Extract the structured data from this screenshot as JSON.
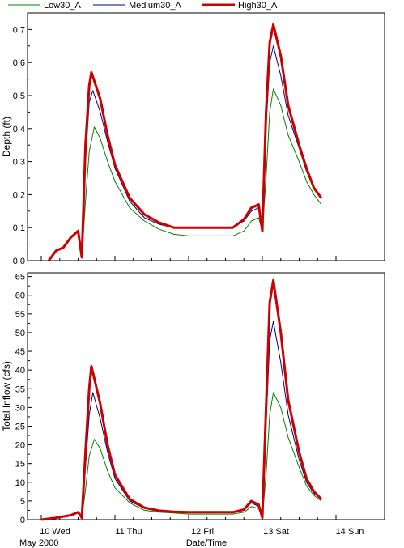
{
  "legend": [
    {
      "name": "Low30_A",
      "color": "#008000",
      "width": 1
    },
    {
      "name": "Medium30_A",
      "color": "#000080",
      "width": 1
    },
    {
      "name": "High30_A",
      "color": "#cc0000",
      "width": 3
    }
  ],
  "chart_data": [
    {
      "type": "line",
      "title": "",
      "ylabel": "Depth (ft)",
      "xlabel": "",
      "ylim": [
        0,
        0.75
      ],
      "yticks": [
        0.0,
        0.1,
        0.2,
        0.3,
        0.4,
        0.5,
        0.6,
        0.7
      ],
      "ytick_labels": [
        "0.0",
        "0.1",
        "0.2",
        "0.3",
        "0.4",
        "0.5",
        "0.6",
        "0.7"
      ],
      "grid": false,
      "series": [
        {
          "name": "Low30_A",
          "x": [
            0.1,
            0.2,
            0.3,
            0.4,
            0.5,
            0.55,
            0.6,
            0.65,
            0.72,
            0.8,
            0.9,
            1.0,
            1.2,
            1.4,
            1.6,
            1.8,
            2.0,
            2.2,
            2.4,
            2.6,
            2.75,
            2.85,
            2.95,
            3.0,
            3.05,
            3.1,
            3.15,
            3.25,
            3.35,
            3.5,
            3.6,
            3.7,
            3.8
          ],
          "y": [
            0.0,
            0.03,
            0.04,
            0.07,
            0.09,
            0.01,
            0.18,
            0.33,
            0.405,
            0.37,
            0.3,
            0.24,
            0.16,
            0.12,
            0.095,
            0.08,
            0.075,
            0.075,
            0.075,
            0.075,
            0.09,
            0.12,
            0.13,
            0.09,
            0.25,
            0.45,
            0.52,
            0.47,
            0.38,
            0.3,
            0.24,
            0.2,
            0.17
          ]
        },
        {
          "name": "Medium30_A",
          "x": [
            0.1,
            0.2,
            0.3,
            0.4,
            0.5,
            0.55,
            0.6,
            0.65,
            0.7,
            0.8,
            0.9,
            1.0,
            1.2,
            1.4,
            1.6,
            1.8,
            2.0,
            2.2,
            2.4,
            2.6,
            2.75,
            2.85,
            2.95,
            3.0,
            3.05,
            3.1,
            3.15,
            3.25,
            3.35,
            3.5,
            3.6,
            3.7,
            3.8
          ],
          "y": [
            0.0,
            0.03,
            0.04,
            0.07,
            0.09,
            0.01,
            0.3,
            0.48,
            0.515,
            0.45,
            0.36,
            0.28,
            0.18,
            0.13,
            0.11,
            0.1,
            0.1,
            0.1,
            0.1,
            0.1,
            0.12,
            0.15,
            0.16,
            0.09,
            0.4,
            0.6,
            0.65,
            0.56,
            0.44,
            0.34,
            0.27,
            0.22,
            0.19
          ]
        },
        {
          "name": "High30_A",
          "x": [
            0.1,
            0.2,
            0.3,
            0.4,
            0.5,
            0.55,
            0.6,
            0.65,
            0.68,
            0.8,
            0.9,
            1.0,
            1.2,
            1.4,
            1.6,
            1.8,
            2.0,
            2.2,
            2.4,
            2.6,
            2.75,
            2.85,
            2.95,
            3.0,
            3.05,
            3.1,
            3.15,
            3.25,
            3.35,
            3.5,
            3.6,
            3.7,
            3.8
          ],
          "y": [
            0.0,
            0.03,
            0.04,
            0.07,
            0.09,
            0.01,
            0.35,
            0.53,
            0.57,
            0.49,
            0.38,
            0.29,
            0.19,
            0.14,
            0.115,
            0.1,
            0.1,
            0.1,
            0.1,
            0.1,
            0.125,
            0.16,
            0.17,
            0.09,
            0.45,
            0.66,
            0.715,
            0.62,
            0.47,
            0.35,
            0.28,
            0.22,
            0.19
          ]
        }
      ]
    },
    {
      "type": "line",
      "title": "",
      "ylabel": "Total Inflow (cfs)",
      "xlabel": "Date/Time",
      "ylim": [
        0,
        66
      ],
      "yticks": [
        0,
        5,
        10,
        15,
        20,
        25,
        30,
        35,
        40,
        45,
        50,
        55,
        60,
        65
      ],
      "ytick_labels": [
        "0",
        "5",
        "10",
        "15",
        "20",
        "25",
        "30",
        "35",
        "40",
        "45",
        "50",
        "55",
        "60",
        "65"
      ],
      "xlim": [
        0,
        4
      ],
      "xticks": [
        0,
        1,
        2,
        3,
        4
      ],
      "xtick_labels": [
        "10 Wed",
        "11 Thu",
        "12 Fri",
        "13 Sat",
        "14 Sun"
      ],
      "x_sublabel": "May 2000",
      "grid": false,
      "series": [
        {
          "name": "Low30_A",
          "x": [
            0.0,
            0.2,
            0.4,
            0.5,
            0.55,
            0.6,
            0.65,
            0.72,
            0.8,
            0.9,
            1.0,
            1.2,
            1.4,
            1.6,
            1.8,
            2.0,
            2.2,
            2.4,
            2.6,
            2.75,
            2.85,
            2.95,
            3.0,
            3.05,
            3.1,
            3.15,
            3.25,
            3.35,
            3.5,
            3.6,
            3.7,
            3.8
          ],
          "y": [
            0,
            0.5,
            1.2,
            2,
            0.5,
            8,
            17,
            21.5,
            19,
            13,
            8.5,
            4.5,
            2.5,
            2,
            1.8,
            1.5,
            1.5,
            1.5,
            1.5,
            2,
            3.5,
            3,
            0.5,
            12,
            28,
            34,
            30,
            22,
            14,
            9,
            6.5,
            5
          ]
        },
        {
          "name": "Medium30_A",
          "x": [
            0.0,
            0.2,
            0.4,
            0.5,
            0.55,
            0.6,
            0.65,
            0.7,
            0.8,
            0.9,
            1.0,
            1.2,
            1.4,
            1.6,
            1.8,
            2.0,
            2.2,
            2.4,
            2.6,
            2.75,
            2.85,
            2.95,
            3.0,
            3.05,
            3.1,
            3.15,
            3.25,
            3.35,
            3.5,
            3.6,
            3.7,
            3.8
          ],
          "y": [
            0,
            0.5,
            1.2,
            2,
            0.5,
            14,
            28,
            34,
            27,
            18,
            11,
            5,
            3,
            2.2,
            2,
            2,
            2,
            2,
            2,
            2.5,
            4.5,
            3.5,
            0.5,
            25,
            48,
            53,
            42,
            28,
            16,
            10,
            7,
            5.5
          ]
        },
        {
          "name": "High30_A",
          "x": [
            0.0,
            0.2,
            0.4,
            0.5,
            0.55,
            0.6,
            0.65,
            0.68,
            0.8,
            0.9,
            1.0,
            1.2,
            1.4,
            1.6,
            1.8,
            2.0,
            2.2,
            2.4,
            2.6,
            2.75,
            2.85,
            2.95,
            3.0,
            3.05,
            3.1,
            3.15,
            3.25,
            3.35,
            3.5,
            3.6,
            3.7,
            3.8
          ],
          "y": [
            0,
            0.5,
            1.2,
            2,
            0.5,
            18,
            35,
            41,
            31,
            20,
            12,
            5.5,
            3.2,
            2.4,
            2.1,
            2,
            2,
            2,
            2,
            2.7,
            5,
            4,
            0.5,
            30,
            58,
            64,
            50,
            32,
            18,
            11,
            7.5,
            5.5
          ]
        }
      ]
    }
  ]
}
